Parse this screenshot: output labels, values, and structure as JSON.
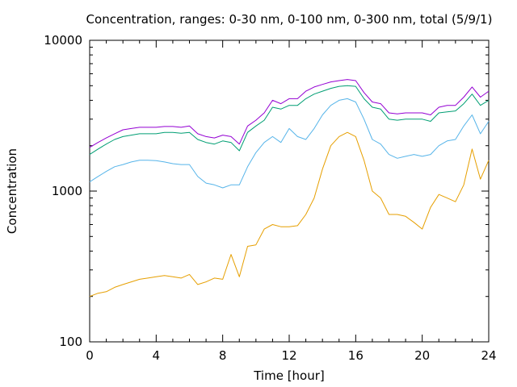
{
  "chart_data": {
    "type": "line",
    "title": "Concentration, ranges: 0-30 nm, 0-100 nm, 0-300 nm, total (5/9/1)",
    "xlabel": "Time [hour]",
    "ylabel": "Concentration",
    "xlim": [
      0,
      24
    ],
    "ylim": [
      100,
      10000
    ],
    "yscale": "log",
    "x_ticks": [
      0,
      4,
      8,
      12,
      16,
      20,
      24
    ],
    "x_tick_labels": [
      "0",
      "4",
      "8",
      "12",
      "16",
      "20",
      "24"
    ],
    "y_ticks": [
      100,
      1000,
      10000
    ],
    "y_tick_labels": [
      "100",
      "1000",
      "10000"
    ],
    "x": [
      0,
      0.5,
      1,
      1.5,
      2,
      2.5,
      3,
      3.5,
      4,
      4.5,
      5,
      5.5,
      6,
      6.5,
      7,
      7.5,
      8,
      8.5,
      9,
      9.5,
      10,
      10.5,
      11,
      11.5,
      12,
      12.5,
      13,
      13.5,
      14,
      14.5,
      15,
      15.5,
      16,
      16.5,
      17,
      17.5,
      18,
      18.5,
      19,
      19.5,
      20,
      20.5,
      21,
      21.5,
      22,
      22.5,
      23,
      23.5,
      24
    ],
    "series": [
      {
        "color": "#e69f00",
        "values": [
          200,
          210,
          215,
          230,
          240,
          250,
          260,
          265,
          270,
          275,
          270,
          265,
          280,
          240,
          250,
          265,
          260,
          380,
          270,
          430,
          440,
          560,
          600,
          580,
          580,
          590,
          700,
          900,
          1400,
          2000,
          2300,
          2450,
          2300,
          1600,
          1000,
          900,
          700,
          700,
          680,
          620,
          560,
          780,
          950,
          900,
          850,
          1100,
          1900,
          1200,
          1600
        ]
      },
      {
        "color": "#56b4e9",
        "values": [
          1150,
          1250,
          1350,
          1450,
          1500,
          1560,
          1600,
          1600,
          1590,
          1560,
          1520,
          1500,
          1500,
          1250,
          1130,
          1100,
          1050,
          1100,
          1100,
          1450,
          1800,
          2100,
          2300,
          2100,
          2600,
          2300,
          2200,
          2600,
          3200,
          3700,
          4000,
          4100,
          3900,
          3000,
          2200,
          2050,
          1750,
          1650,
          1700,
          1750,
          1700,
          1750,
          2000,
          2150,
          2200,
          2700,
          3200,
          2400,
          2900
        ]
      },
      {
        "color": "#009e73",
        "values": [
          1750,
          1900,
          2050,
          2200,
          2300,
          2350,
          2400,
          2400,
          2400,
          2450,
          2450,
          2420,
          2450,
          2200,
          2100,
          2050,
          2150,
          2100,
          1850,
          2450,
          2700,
          2950,
          3600,
          3500,
          3700,
          3700,
          4100,
          4400,
          4600,
          4800,
          4950,
          5000,
          4950,
          4100,
          3600,
          3500,
          3000,
          2950,
          3000,
          3000,
          3000,
          2900,
          3300,
          3350,
          3400,
          3800,
          4400,
          3700,
          4000
        ]
      },
      {
        "color": "#9400d3",
        "values": [
          1950,
          2100,
          2250,
          2400,
          2550,
          2600,
          2650,
          2650,
          2650,
          2680,
          2680,
          2650,
          2700,
          2400,
          2300,
          2250,
          2350,
          2300,
          2050,
          2700,
          2950,
          3300,
          4000,
          3800,
          4100,
          4100,
          4600,
          4900,
          5100,
          5300,
          5400,
          5500,
          5400,
          4500,
          3900,
          3800,
          3300,
          3250,
          3300,
          3300,
          3300,
          3200,
          3600,
          3700,
          3700,
          4200,
          4900,
          4200,
          4600
        ]
      }
    ]
  }
}
